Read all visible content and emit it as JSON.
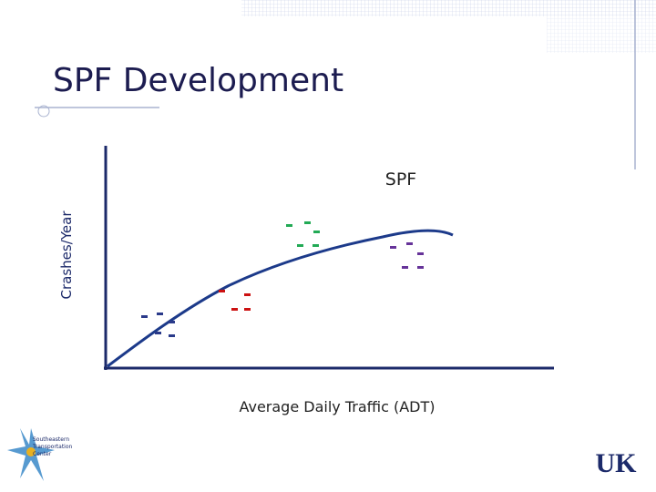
{
  "slide": {
    "title": "SPF Development",
    "curve_label": "SPF",
    "y_axis_label": "Crashes/Year",
    "x_axis_label": "Average Daily Traffic (ADT)",
    "logo_left": [
      "Southeastern",
      "Transportation",
      "Center"
    ],
    "logo_right": "UK"
  }
}
